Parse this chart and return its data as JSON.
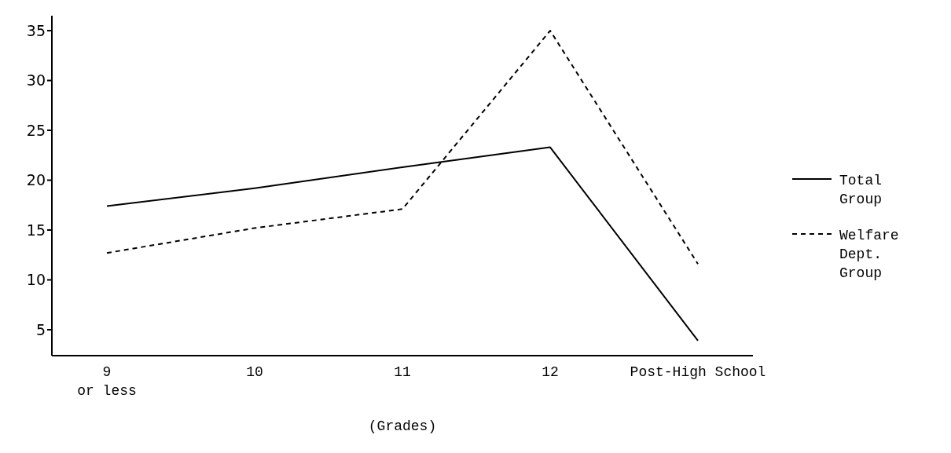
{
  "chart_data": {
    "type": "line",
    "xlabel": "(Grades)",
    "categories": [
      "9\nor less",
      "10",
      "11",
      "12",
      "Post-High School"
    ],
    "series": [
      {
        "name": "Total Group",
        "color": "#000000",
        "line_style": "solid",
        "values": [
          17.4,
          19.2,
          21.3,
          23.3,
          3.9
        ]
      },
      {
        "name": "Welfare Dept. Group",
        "color": "#000000",
        "line_style": "dashed",
        "values": [
          12.7,
          15.2,
          17.1,
          35,
          11.6
        ]
      }
    ],
    "ylim": [
      2.4,
      36.5
    ],
    "yticks": [
      5,
      10,
      15,
      20,
      25,
      30,
      35
    ],
    "grid": false,
    "legend": "right",
    "marker": "none"
  }
}
